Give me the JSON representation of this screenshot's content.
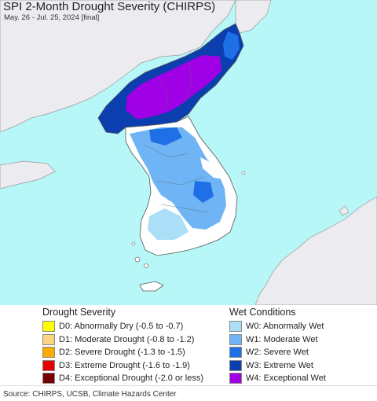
{
  "header": {
    "title": "SPI 2-Month Drought Severity (CHIRPS)",
    "subtitle": "May. 26 - Jul. 25, 2024 [final]"
  },
  "legend": {
    "drought_heading": "Drought Severity",
    "wet_heading": "Wet Conditions",
    "drought": [
      {
        "label": "D0: Abnormally Dry (-0.5 to -0.7)",
        "color": "#ffff00"
      },
      {
        "label": "D1: Moderate Drought (-0.8 to -1.2)",
        "color": "#fcd37f"
      },
      {
        "label": "D2: Severe Drought (-1.3 to -1.5)",
        "color": "#ffaa00"
      },
      {
        "label": "D3: Extreme Drought (-1.6 to -1.9)",
        "color": "#e60000"
      },
      {
        "label": "D4: Exceptional Drought (-2.0 or less)",
        "color": "#730000"
      }
    ],
    "wet": [
      {
        "label": "W0: Abnormally Wet",
        "color": "#aadff7"
      },
      {
        "label": "W1: Moderate Wet",
        "color": "#6fb4f5"
      },
      {
        "label": "W2: Severe Wet",
        "color": "#1f6fe6"
      },
      {
        "label": "W3: Extreme Wet",
        "color": "#0b3fb0"
      },
      {
        "label": "W4: Exceptional Wet",
        "color": "#a000e6"
      }
    ]
  },
  "map": {
    "colors": {
      "sea": "#b8f7f7",
      "foreign_land": "#ececf0",
      "normal": "#ffffff",
      "border": "#777777"
    }
  },
  "footer": {
    "source": "Source: CHIRPS, UCSB, Climate Hazards Center"
  }
}
